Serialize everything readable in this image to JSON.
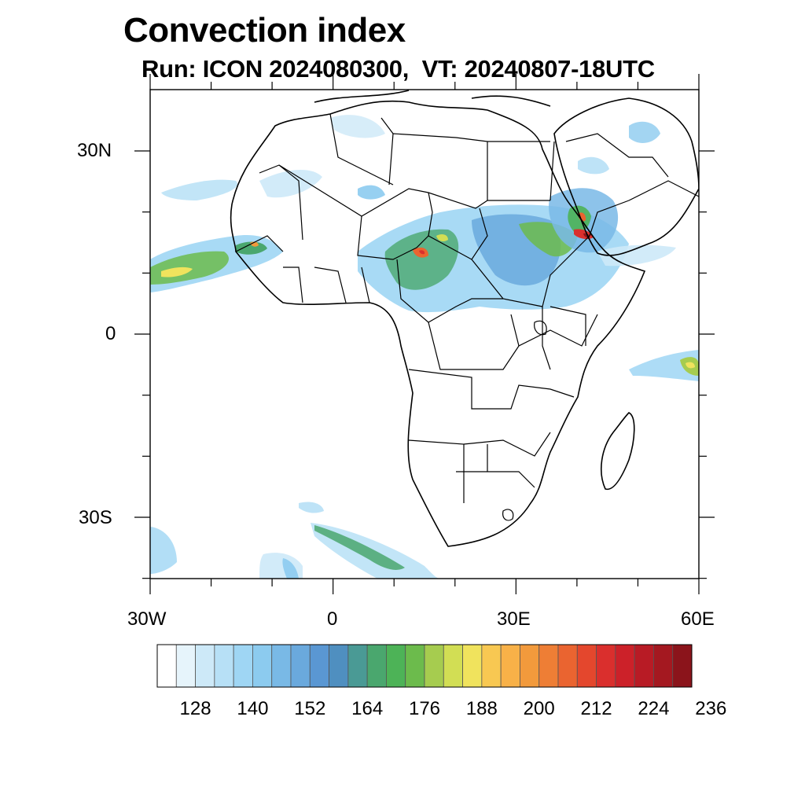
{
  "title": "Convection index",
  "subtitle": "Run: ICON 2024080300,  VT: 20240807-18UTC",
  "lat_labels": [
    "30N",
    "0",
    "30S"
  ],
  "lon_labels": [
    "30W",
    "0",
    "30E",
    "60E"
  ],
  "colorbar": {
    "labels": [
      "128",
      "140",
      "152",
      "164",
      "176",
      "188",
      "200",
      "212",
      "224",
      "236"
    ],
    "colors": [
      "#ffffff",
      "#e6f4fb",
      "#cde9f8",
      "#b7e0f6",
      "#9fd6f4",
      "#8ccbef",
      "#79b9e6",
      "#6aa9dd",
      "#5a97d3",
      "#4f8fc0",
      "#4a9a95",
      "#4aa76e",
      "#4db357",
      "#6cbb4c",
      "#a6cc4f",
      "#d2de54",
      "#f0e35d",
      "#f8c852",
      "#f8b148",
      "#f29a3c",
      "#ee7e35",
      "#ea6430",
      "#e4472d",
      "#da2f2d",
      "#cc2129",
      "#b81b25",
      "#a41820",
      "#8b141b"
    ]
  },
  "colors": {
    "land_outline": "#000000",
    "frame": "#000000"
  }
}
